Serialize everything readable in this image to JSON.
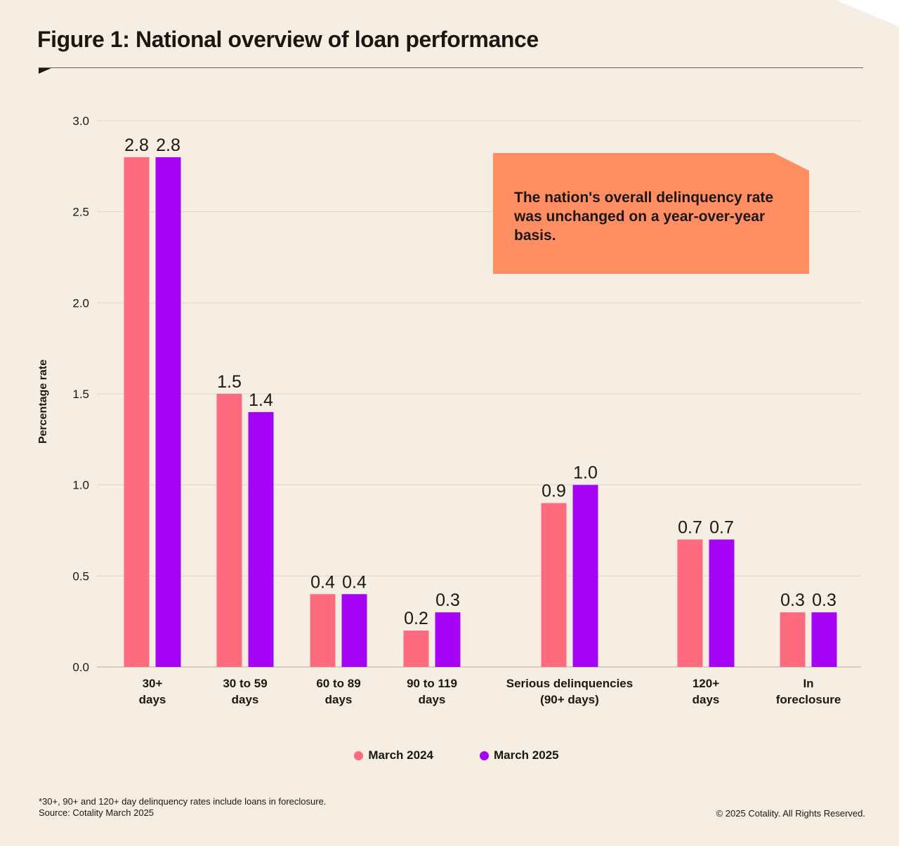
{
  "title": "Figure 1: National overview of loan performance",
  "callout": "The nation's overall delinquency rate was unchanged on a year-over-year basis.",
  "footnote": {
    "line1": "*30+, 90+ and 120+ day delinquency rates include loans in foreclosure.",
    "line2": "Source: Cotality March 2025"
  },
  "copyright": "© 2025 Cotality. All Rights Reserved.",
  "colors": {
    "series1": "#ff6b7e",
    "series2": "#a504f5",
    "callout": "#ff8f63",
    "background": "#f6eee2"
  },
  "chart_data": {
    "type": "bar",
    "ylabel": "Percentage rate",
    "ylim": [
      0,
      3.0
    ],
    "yticks": [
      "0.0",
      "0.5",
      "1.0",
      "1.5",
      "2.0",
      "2.5",
      "3.0"
    ],
    "grid": true,
    "legend_position": "bottom",
    "categories": [
      [
        "30+",
        "days"
      ],
      [
        "30 to 59",
        "days"
      ],
      [
        "60 to 89",
        "days"
      ],
      [
        "90 to 119",
        "days"
      ],
      [
        "Serious delinquencies",
        "(90+ days)"
      ],
      [
        "120+",
        "days"
      ],
      [
        "In",
        "foreclosure"
      ]
    ],
    "series": [
      {
        "name": "March 2024",
        "color": "#ff6b7e",
        "values": [
          2.8,
          1.5,
          0.4,
          0.2,
          0.9,
          0.7,
          0.3
        ],
        "labels": [
          "2.8",
          "1.5",
          "0.4",
          "0.2",
          "0.9",
          "0.7",
          "0.3"
        ]
      },
      {
        "name": "March 2025",
        "color": "#a504f5",
        "values": [
          2.8,
          1.4,
          0.4,
          0.3,
          1.0,
          0.7,
          0.3
        ],
        "labels": [
          "2.8",
          "1.4",
          "0.4",
          "0.3",
          "1.0",
          "0.7",
          "0.3"
        ]
      }
    ]
  }
}
